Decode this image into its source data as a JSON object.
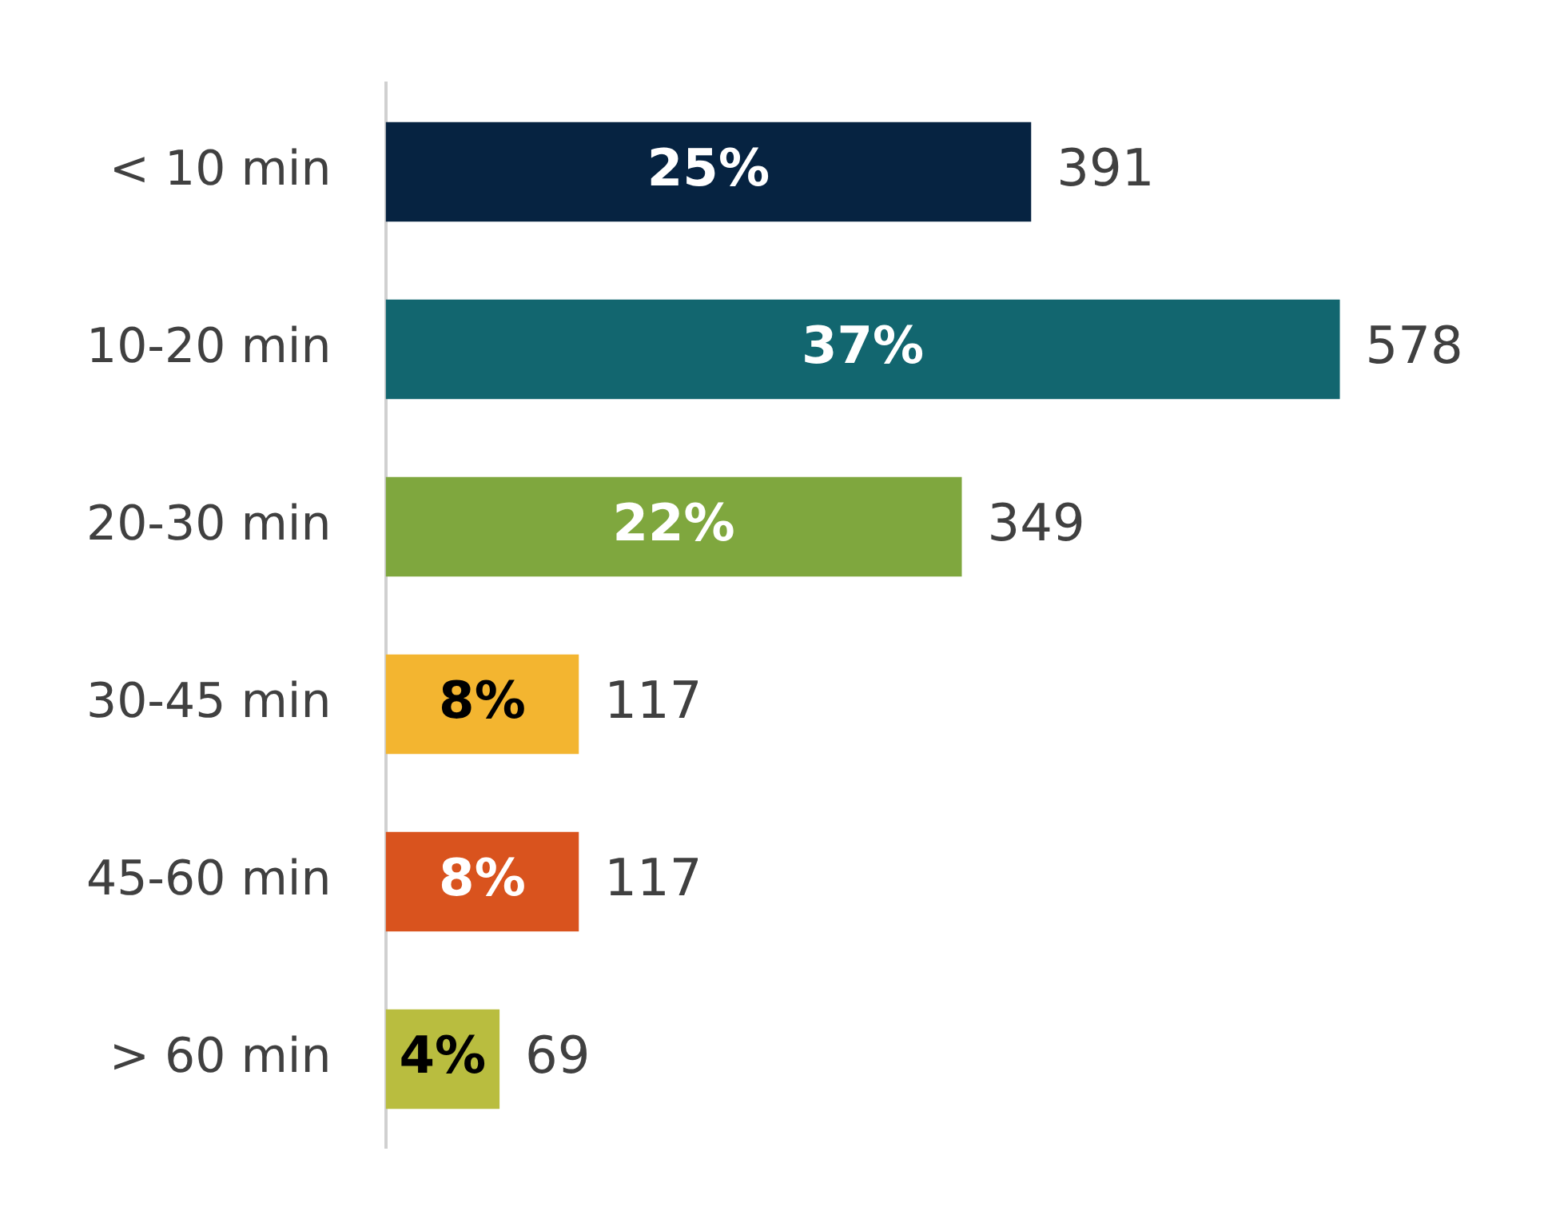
{
  "chart_data": {
    "type": "bar",
    "orientation": "horizontal",
    "categories": [
      "< 10 min",
      "10-20 min",
      "20-30 min",
      "30-45 min",
      "45-60 min",
      "> 60 min"
    ],
    "values": [
      391,
      578,
      349,
      117,
      117,
      69
    ],
    "colors": [
      "#062341",
      "#12666f",
      "#7fa73e",
      "#f3b530",
      "#d9531e",
      "#b9bd3f"
    ],
    "annotations": [
      "25%",
      "37%",
      "22%",
      "8%",
      "8%",
      "4%"
    ],
    "data_labels": true,
    "grid": false,
    "legend": false
  }
}
